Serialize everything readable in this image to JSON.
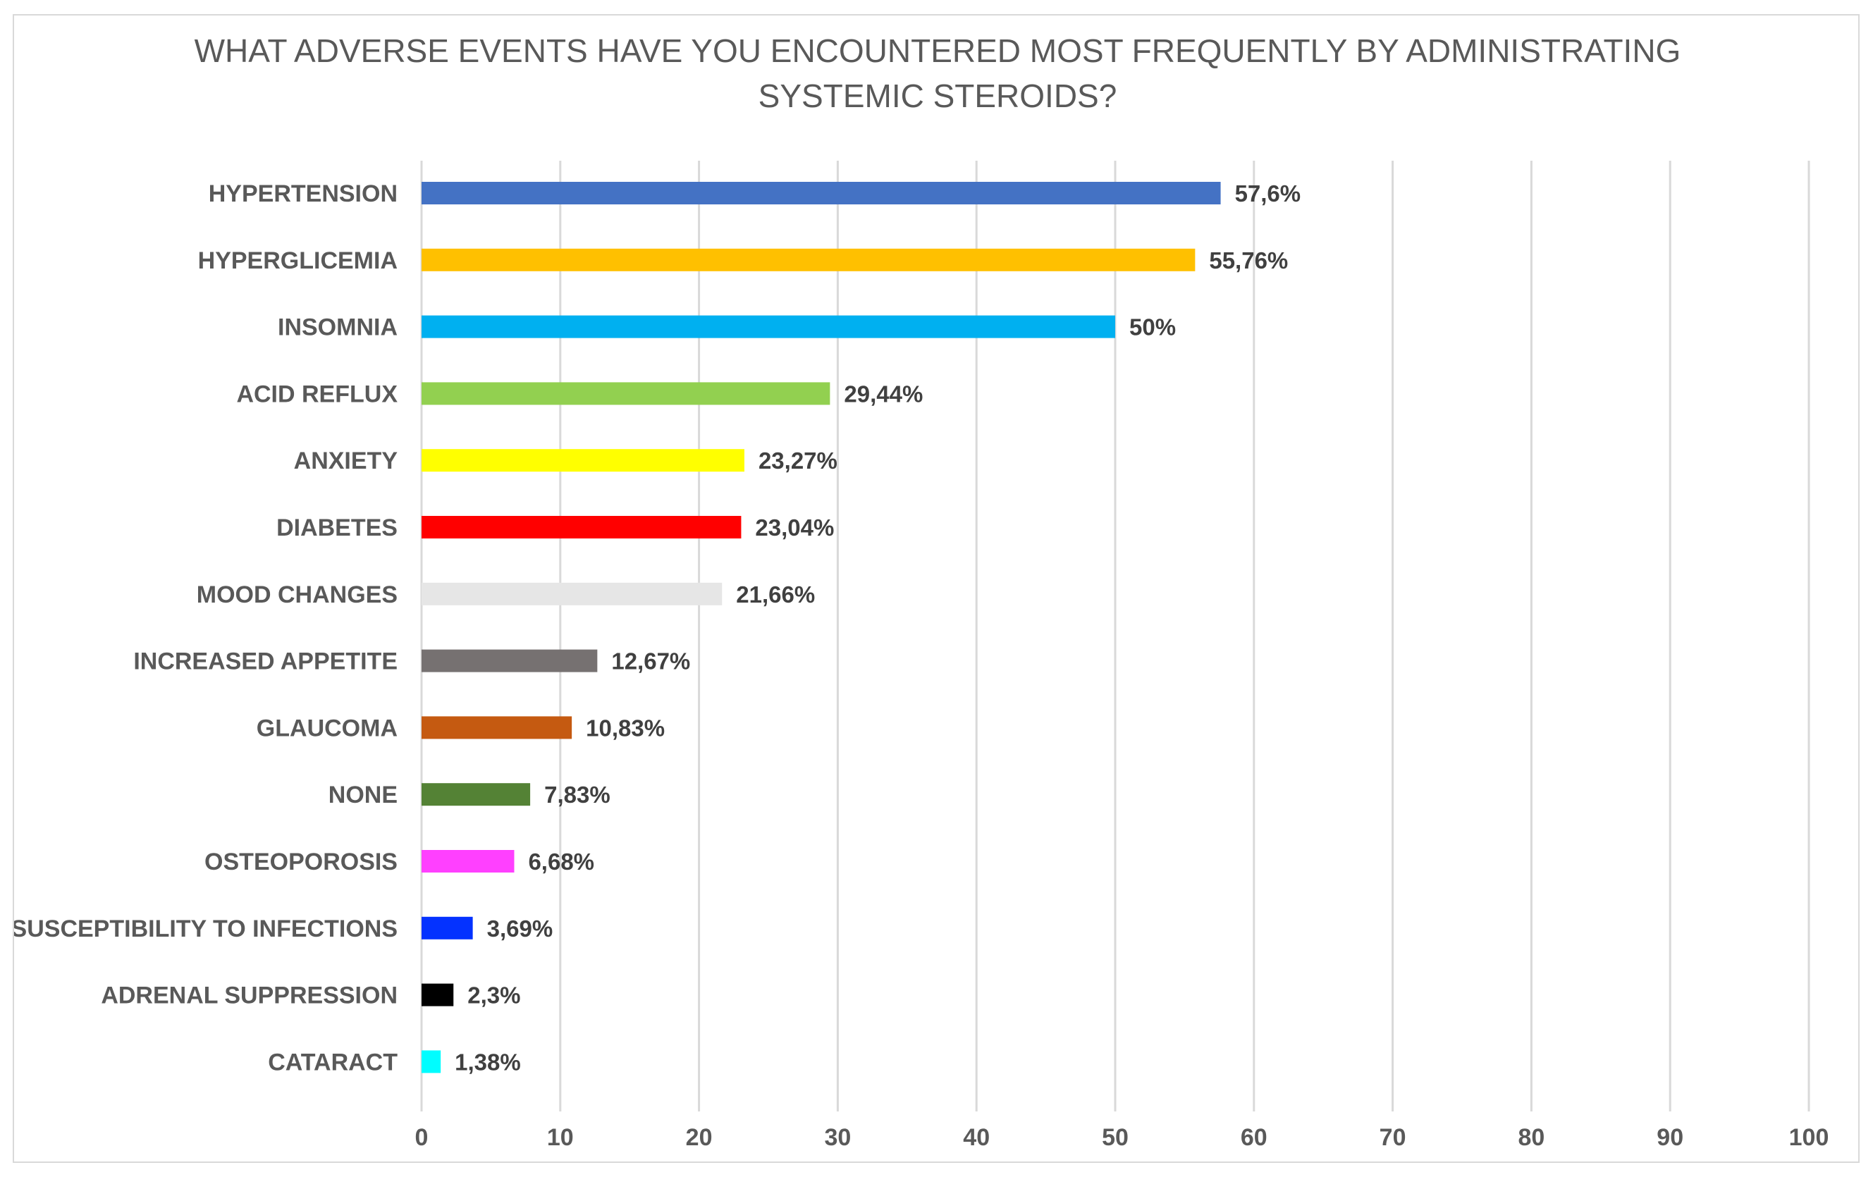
{
  "chart_data": {
    "type": "bar",
    "orientation": "horizontal",
    "title_lines": [
      "WHAT ADVERSE EVENTS HAVE YOU ENCOUNTERED MOST FREQUENTLY BY ADMINISTRATING",
      "SYSTEMIC STEROIDS?"
    ],
    "xlabel": "",
    "ylabel": "",
    "xlim": [
      0,
      100
    ],
    "ticks": [
      0,
      10,
      20,
      30,
      40,
      50,
      60,
      70,
      80,
      90,
      100
    ],
    "tick_labels": [
      "0",
      "10",
      "20",
      "30",
      "40",
      "50",
      "60",
      "70",
      "80",
      "90",
      "100"
    ],
    "grid": true,
    "legend": "none",
    "categories": [
      "HYPERTENSION",
      "HYPERGLICEMIA",
      "INSOMNIA",
      "ACID REFLUX",
      "ANXIETY",
      "DIABETES",
      "MOOD CHANGES",
      "INCREASED APPETITE",
      "GLAUCOMA",
      "NONE",
      "OSTEOPOROSIS",
      "SUSCEPTIBILITY TO INFECTIONS",
      "ADRENAL SUPPRESSION",
      "CATARACT"
    ],
    "values": [
      57.6,
      55.76,
      50,
      29.44,
      23.27,
      23.04,
      21.66,
      12.67,
      10.83,
      7.83,
      6.68,
      3.69,
      2.3,
      1.38
    ],
    "value_labels": [
      "57,6%",
      "55,76%",
      "50%",
      "29,44%",
      "23,27%",
      "23,04%",
      "21,66%",
      "12,67%",
      "10,83%",
      "7,83%",
      "6,68%",
      "3,69%",
      "2,3%",
      "1,38%"
    ],
    "colors": [
      "#4472c4",
      "#ffc000",
      "#00b0f0",
      "#92d050",
      "#ffff00",
      "#ff0000",
      "#e6e6e6",
      "#767171",
      "#c55a11",
      "#548235",
      "#ff40ff",
      "#0432ff",
      "#000000",
      "#00fdff"
    ]
  }
}
